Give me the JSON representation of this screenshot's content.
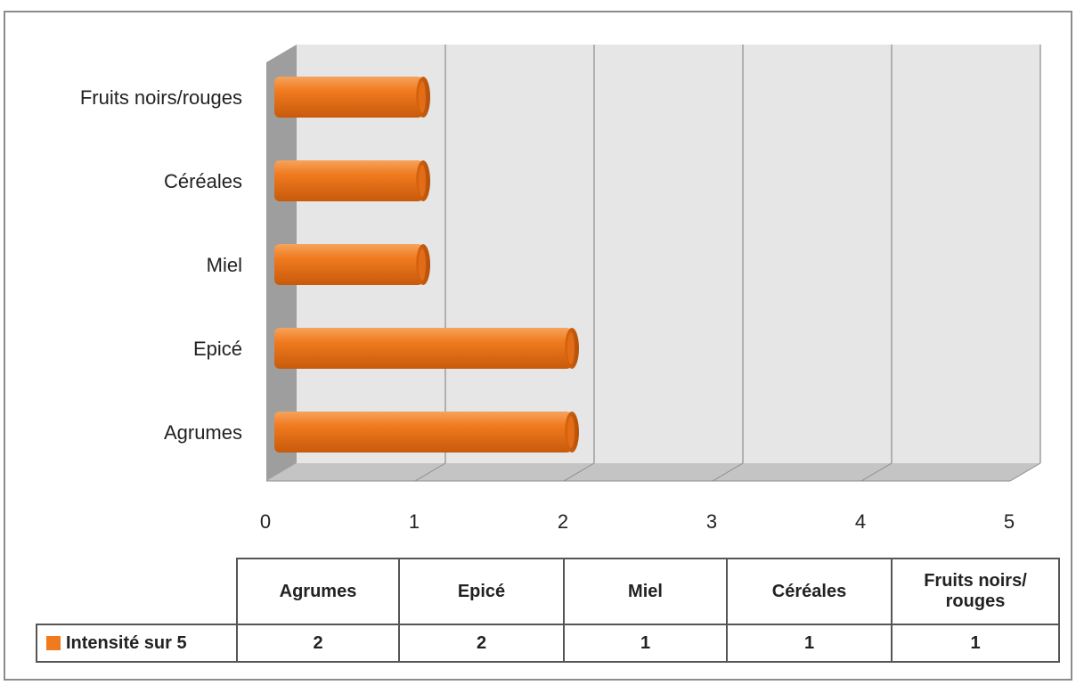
{
  "chart_data": {
    "type": "bar",
    "orientation": "horizontal",
    "categories": [
      "Agrumes",
      "Epicé",
      "Miel",
      "Céréales",
      "Fruits noirs/rouges"
    ],
    "series": [
      {
        "name": "Intensité sur 5",
        "values": [
          2,
          2,
          1,
          1,
          1
        ],
        "color": "#f07a1e"
      }
    ],
    "xlim": [
      0,
      5
    ],
    "x_ticks": [
      "0",
      "1",
      "2",
      "3",
      "4",
      "5"
    ],
    "grid": true,
    "style_3d": true,
    "plot_background": "#e6e6e6"
  },
  "data_table": {
    "headers": [
      "Agrumes",
      "Epicé",
      "Miel",
      "Céréales",
      "Fruits noirs/\nrouges"
    ],
    "legend_label": "Intensité sur 5",
    "values": [
      "2",
      "2",
      "1",
      "1",
      "1"
    ]
  }
}
